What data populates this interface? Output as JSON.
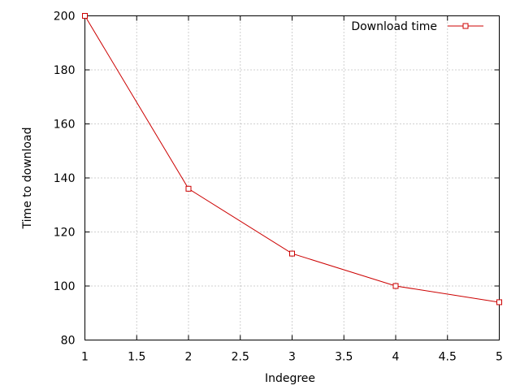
{
  "chart_data": {
    "type": "line",
    "title": "",
    "xlabel": "Indegree",
    "ylabel": "Time to download",
    "xlim": [
      1,
      5
    ],
    "ylim": [
      80,
      200
    ],
    "x_ticks": [
      "1",
      "1.5",
      "2",
      "2.5",
      "3",
      "3.5",
      "4",
      "4.5",
      "5"
    ],
    "y_ticks": [
      "80",
      "100",
      "120",
      "140",
      "160",
      "180",
      "200"
    ],
    "grid": true,
    "legend_position": "top-right",
    "series": [
      {
        "name": "Download time",
        "color": "#cc0000",
        "marker": "open-square",
        "x": [
          1,
          2,
          3,
          4,
          5
        ],
        "y": [
          200,
          136,
          112,
          100,
          94
        ]
      }
    ]
  }
}
